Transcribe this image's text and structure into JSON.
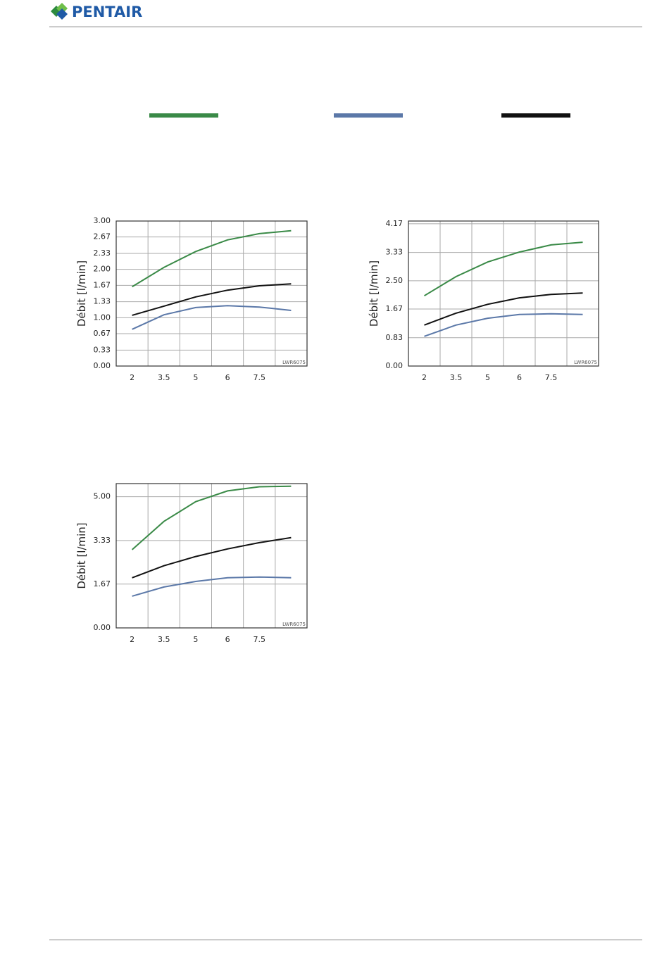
{
  "header": {
    "logo_text": "PENTAIR"
  },
  "chart_data": [
    {
      "type": "line",
      "y_label": "Débit [l/min]",
      "watermark": "LWR6075",
      "categories": [
        "2",
        "3.5",
        "5",
        "6",
        "7.5",
        null
      ],
      "ylim": [
        0,
        3
      ],
      "yticks": [
        {
          "value": 0,
          "label": "0.00"
        },
        0.33,
        0.67,
        {
          "value": 1,
          "label": "1.00"
        },
        1.33,
        1.67,
        {
          "value": 2,
          "label": "2.00"
        },
        2.33,
        2.67,
        {
          "value": 3,
          "label": "3.00"
        }
      ],
      "grid": true,
      "series": [
        {
          "color": "#3a8a47",
          "values": [
            1.64,
            2.04,
            2.37,
            2.61,
            2.74,
            2.8
          ]
        },
        {
          "color": "#5b78a8",
          "values": [
            0.76,
            1.06,
            1.21,
            1.25,
            1.22,
            1.15
          ]
        },
        {
          "color": "#111111",
          "values": [
            1.05,
            1.24,
            1.43,
            1.57,
            1.66,
            1.7
          ]
        }
      ]
    },
    {
      "type": "line",
      "y_label": "Débit [l/min]",
      "watermark": "LWR6075",
      "categories": [
        "2",
        "3.5",
        "5",
        "6",
        "7.5",
        null
      ],
      "ylim": [
        0,
        4.25
      ],
      "yticks": [
        {
          "value": 0,
          "label": "0.00"
        },
        0.83,
        1.67,
        {
          "value": 2.5,
          "label": "2.50"
        },
        3.33,
        4.17
      ],
      "grid": true,
      "series": [
        {
          "color": "#3a8a47",
          "values": [
            2.06,
            2.62,
            3.05,
            3.34,
            3.55,
            3.63
          ]
        },
        {
          "color": "#5b78a8",
          "values": [
            0.87,
            1.2,
            1.4,
            1.51,
            1.53,
            1.51
          ]
        },
        {
          "color": "#111111",
          "values": [
            1.2,
            1.55,
            1.81,
            2.0,
            2.1,
            2.14
          ]
        }
      ]
    },
    {
      "type": "line",
      "y_label": "Débit [l/min]",
      "watermark": "LWR6075",
      "categories": [
        "2",
        "3.5",
        "5",
        "6",
        "7.5",
        null
      ],
      "ylim": [
        0,
        5.5
      ],
      "yticks": [
        {
          "value": 0,
          "label": "0.00"
        },
        1.67,
        3.33,
        {
          "value": 5,
          "label": "5.00"
        }
      ],
      "grid": true,
      "series": [
        {
          "color": "#3a8a47",
          "values": [
            2.98,
            4.06,
            4.81,
            5.22,
            5.38,
            5.4
          ]
        },
        {
          "color": "#5b78a8",
          "values": [
            1.21,
            1.56,
            1.77,
            1.91,
            1.94,
            1.91
          ]
        },
        {
          "color": "#111111",
          "values": [
            1.91,
            2.37,
            2.72,
            3.01,
            3.25,
            3.44
          ]
        }
      ]
    }
  ]
}
